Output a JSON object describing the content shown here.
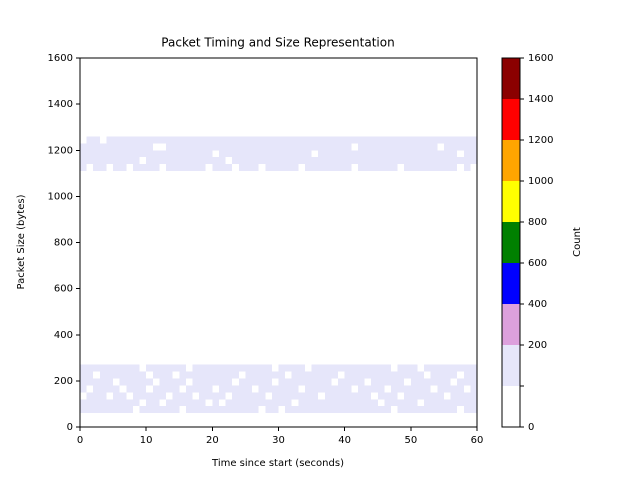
{
  "chart_data": {
    "type": "heatmap",
    "title": "Packet Timing and Size Representation",
    "x_label": "Time since start (seconds)",
    "y_label": "Packet Size (bytes)",
    "colorbar_label": "Count",
    "xlim": [
      0,
      60
    ],
    "ylim": [
      0,
      1600
    ],
    "xticks": [
      0,
      10,
      20,
      30,
      40,
      50,
      60
    ],
    "yticks": [
      0,
      200,
      400,
      600,
      800,
      1000,
      1200,
      1400,
      1600
    ],
    "x_bins": [
      0,
      1,
      2,
      3,
      4,
      5,
      6,
      7,
      8,
      9,
      10,
      11,
      12,
      13,
      14,
      15,
      16,
      17,
      18,
      19,
      20,
      21,
      22,
      23,
      24,
      25,
      26,
      27,
      28,
      29,
      30,
      31,
      32,
      33,
      34,
      35,
      36,
      37,
      38,
      39,
      40,
      41,
      42,
      43,
      44,
      45,
      46,
      47,
      48,
      49,
      50,
      51,
      52,
      53,
      54,
      55,
      56,
      57,
      58,
      59,
      60
    ],
    "colorbar": {
      "bounds": [
        0,
        1,
        200,
        400,
        600,
        800,
        1000,
        1200,
        1400,
        1600
      ],
      "colors": [
        "#ffffff",
        "#e6e6fa",
        "#dda0dd",
        "#0000ff",
        "#008000",
        "#ffff00",
        "#ffa500",
        "#ff0000",
        "#8b0000"
      ],
      "ticks": [
        0,
        200,
        400,
        600,
        800,
        1000,
        1200,
        1400,
        1600
      ]
    },
    "rows": [
      {
        "y_bin": [
          60,
          90
        ],
        "counts": [
          40,
          40,
          40,
          40,
          40,
          40,
          40,
          40,
          0,
          40,
          40,
          40,
          40,
          40,
          40,
          0,
          40,
          40,
          40,
          40,
          40,
          40,
          40,
          40,
          40,
          40,
          40,
          0,
          40,
          40,
          0,
          40,
          40,
          40,
          40,
          40,
          40,
          40,
          40,
          40,
          40,
          40,
          40,
          40,
          40,
          40,
          40,
          0,
          40,
          40,
          40,
          40,
          40,
          40,
          40,
          40,
          40,
          0,
          40,
          40
        ]
      },
      {
        "y_bin": [
          90,
          120
        ],
        "counts": [
          40,
          40,
          40,
          40,
          40,
          40,
          40,
          40,
          40,
          0,
          40,
          40,
          0,
          40,
          40,
          40,
          40,
          40,
          40,
          0,
          40,
          0,
          40,
          40,
          40,
          40,
          40,
          40,
          40,
          40,
          40,
          40,
          0,
          40,
          40,
          40,
          40,
          40,
          40,
          40,
          40,
          40,
          40,
          40,
          40,
          0,
          40,
          40,
          40,
          40,
          40,
          0,
          40,
          40,
          40,
          40,
          40,
          40,
          40,
          40
        ]
      },
      {
        "y_bin": [
          120,
          150
        ],
        "counts": [
          0,
          40,
          40,
          40,
          0,
          40,
          40,
          0,
          40,
          40,
          40,
          40,
          40,
          0,
          40,
          40,
          40,
          0,
          40,
          40,
          40,
          40,
          0,
          40,
          40,
          40,
          40,
          40,
          0,
          40,
          40,
          40,
          40,
          40,
          40,
          40,
          0,
          40,
          40,
          40,
          40,
          40,
          40,
          40,
          0,
          40,
          40,
          40,
          0,
          40,
          40,
          40,
          40,
          40,
          40,
          0,
          40,
          40,
          40,
          40
        ]
      },
      {
        "y_bin": [
          150,
          180
        ],
        "counts": [
          40,
          0,
          40,
          40,
          40,
          40,
          0,
          40,
          40,
          40,
          0,
          40,
          40,
          40,
          40,
          0,
          40,
          40,
          40,
          40,
          0,
          40,
          40,
          40,
          40,
          40,
          0,
          40,
          40,
          40,
          40,
          40,
          40,
          0,
          40,
          40,
          40,
          40,
          40,
          40,
          40,
          0,
          40,
          40,
          40,
          40,
          0,
          40,
          40,
          40,
          40,
          40,
          40,
          0,
          40,
          40,
          40,
          40,
          0,
          40
        ]
      },
      {
        "y_bin": [
          180,
          210
        ],
        "counts": [
          40,
          40,
          40,
          40,
          40,
          0,
          40,
          40,
          40,
          40,
          40,
          0,
          40,
          40,
          40,
          40,
          0,
          40,
          40,
          40,
          40,
          40,
          40,
          0,
          40,
          40,
          40,
          40,
          40,
          0,
          40,
          40,
          40,
          40,
          40,
          40,
          40,
          40,
          0,
          40,
          40,
          40,
          40,
          0,
          40,
          40,
          40,
          40,
          40,
          0,
          40,
          40,
          40,
          40,
          40,
          40,
          0,
          40,
          40,
          40
        ]
      },
      {
        "y_bin": [
          210,
          240
        ],
        "counts": [
          40,
          40,
          0,
          40,
          40,
          40,
          40,
          40,
          40,
          40,
          0,
          40,
          40,
          40,
          0,
          40,
          40,
          40,
          40,
          40,
          40,
          40,
          40,
          40,
          0,
          40,
          40,
          40,
          40,
          40,
          40,
          0,
          40,
          40,
          40,
          40,
          40,
          40,
          40,
          0,
          40,
          40,
          40,
          40,
          40,
          40,
          40,
          40,
          40,
          40,
          40,
          40,
          0,
          40,
          40,
          40,
          40,
          0,
          40,
          40
        ]
      },
      {
        "y_bin": [
          240,
          270
        ],
        "counts": [
          40,
          40,
          40,
          40,
          40,
          40,
          40,
          40,
          40,
          0,
          40,
          40,
          40,
          40,
          40,
          40,
          0,
          40,
          40,
          40,
          40,
          40,
          40,
          40,
          40,
          40,
          40,
          40,
          40,
          0,
          40,
          40,
          40,
          40,
          0,
          40,
          40,
          40,
          40,
          40,
          40,
          40,
          40,
          40,
          40,
          40,
          40,
          0,
          40,
          40,
          40,
          0,
          40,
          40,
          40,
          40,
          40,
          40,
          40,
          40
        ]
      },
      {
        "y_bin": [
          1110,
          1140
        ],
        "counts": [
          40,
          0,
          40,
          40,
          0,
          40,
          40,
          0,
          40,
          40,
          40,
          40,
          0,
          40,
          40,
          40,
          40,
          40,
          40,
          0,
          40,
          40,
          40,
          0,
          40,
          40,
          40,
          0,
          40,
          40,
          40,
          40,
          40,
          0,
          40,
          40,
          40,
          40,
          40,
          40,
          40,
          0,
          40,
          40,
          40,
          40,
          40,
          40,
          0,
          40,
          40,
          40,
          40,
          40,
          40,
          40,
          40,
          0,
          40,
          0
        ]
      },
      {
        "y_bin": [
          1140,
          1170
        ],
        "counts": [
          40,
          40,
          40,
          40,
          40,
          40,
          40,
          40,
          40,
          0,
          40,
          40,
          40,
          40,
          40,
          40,
          40,
          40,
          40,
          40,
          40,
          40,
          0,
          40,
          40,
          40,
          40,
          40,
          40,
          40,
          40,
          40,
          40,
          40,
          40,
          40,
          40,
          40,
          40,
          40,
          40,
          40,
          40,
          40,
          40,
          40,
          40,
          40,
          40,
          40,
          40,
          40,
          40,
          40,
          40,
          40,
          40,
          40,
          40,
          40
        ]
      },
      {
        "y_bin": [
          1170,
          1200
        ],
        "counts": [
          40,
          40,
          40,
          40,
          40,
          40,
          40,
          40,
          40,
          40,
          40,
          40,
          40,
          40,
          40,
          40,
          40,
          40,
          40,
          40,
          0,
          40,
          40,
          40,
          40,
          40,
          40,
          40,
          40,
          40,
          40,
          40,
          40,
          40,
          40,
          0,
          40,
          40,
          40,
          40,
          40,
          40,
          40,
          40,
          40,
          40,
          40,
          40,
          40,
          40,
          40,
          40,
          40,
          40,
          40,
          40,
          40,
          0,
          40,
          40
        ]
      },
      {
        "y_bin": [
          1200,
          1230
        ],
        "counts": [
          40,
          40,
          40,
          40,
          40,
          40,
          40,
          40,
          40,
          40,
          40,
          0,
          0,
          40,
          40,
          40,
          40,
          40,
          40,
          40,
          40,
          40,
          40,
          40,
          40,
          40,
          40,
          40,
          40,
          40,
          40,
          40,
          40,
          40,
          40,
          40,
          40,
          40,
          40,
          40,
          40,
          0,
          40,
          40,
          40,
          40,
          40,
          40,
          40,
          40,
          40,
          40,
          40,
          40,
          0,
          40,
          40,
          40,
          40,
          40
        ]
      },
      {
        "y_bin": [
          1230,
          1260
        ],
        "counts": [
          0,
          40,
          40,
          0,
          40,
          40,
          40,
          40,
          40,
          40,
          40,
          40,
          40,
          40,
          40,
          40,
          40,
          40,
          40,
          40,
          40,
          40,
          40,
          40,
          40,
          40,
          40,
          40,
          40,
          40,
          40,
          40,
          40,
          40,
          40,
          40,
          40,
          40,
          40,
          40,
          40,
          40,
          40,
          40,
          40,
          40,
          40,
          40,
          40,
          40,
          40,
          40,
          40,
          40,
          40,
          40,
          40,
          40,
          40,
          40
        ]
      }
    ]
  }
}
